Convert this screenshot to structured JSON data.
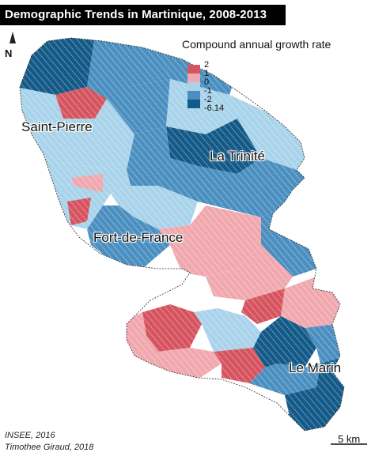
{
  "title": "Demographic Trends in Martinique, 2008-2013",
  "north_label": "N",
  "legend": {
    "title": "Compound annual growth rate",
    "breaks": [
      "2",
      "1",
      "0",
      "-1",
      "-2",
      "-6.14"
    ],
    "classes": [
      {
        "from": 1,
        "to": 2,
        "color": "#d6545f"
      },
      {
        "from": 0,
        "to": 1,
        "color": "#f0a8ae"
      },
      {
        "from": -1,
        "to": 0,
        "color": "#a9d3ea"
      },
      {
        "from": -2,
        "to": -1,
        "color": "#4a8fc0"
      },
      {
        "from": -6.14,
        "to": -2,
        "color": "#145a88"
      }
    ]
  },
  "cities": {
    "saint_pierre": "Saint-Pierre",
    "la_trinite": "La Trinité",
    "fort_de_france": "Fort-de-France",
    "le_marin": "Le Marin"
  },
  "source": {
    "line1": "INSEE, 2016",
    "line2": "Timothee Giraud, 2018"
  },
  "scale": {
    "label": "5 km"
  },
  "colors": {
    "strong_growth": "#d6545f",
    "growth": "#f0a8ae",
    "slight_decline": "#a9d3ea",
    "decline": "#4a8fc0",
    "strong_decline": "#145a88",
    "title_bg": "#000000"
  }
}
